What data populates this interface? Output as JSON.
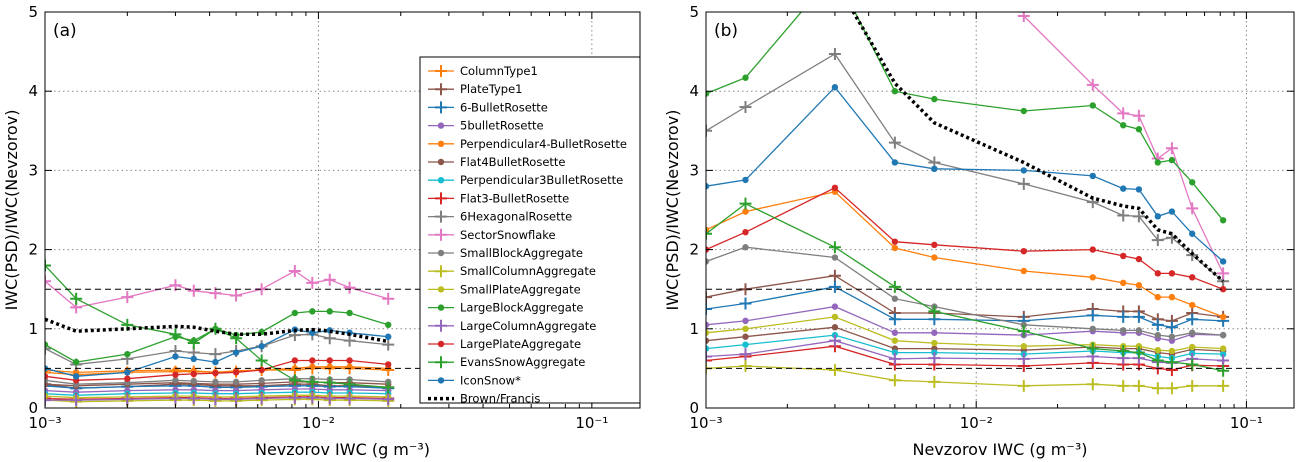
{
  "chart_data": [
    {
      "type": "line",
      "panel_label": "(a)",
      "xlabel": "Nevzorov IWC (g m⁻³)",
      "ylabel": "IWC(PSD)/IWC(Nevzorov)",
      "xscale": "log",
      "xlim": [
        0.001,
        0.15
      ],
      "ylim": [
        0,
        5
      ],
      "x_ticks": [
        {
          "value": 0.001,
          "label": "10⁻³"
        },
        {
          "value": 0.01,
          "label": "10⁻²"
        },
        {
          "value": 0.1,
          "label": "10⁻¹"
        }
      ],
      "y_ticks": [
        {
          "value": 0,
          "label": "0"
        },
        {
          "value": 1,
          "label": "1"
        },
        {
          "value": 2,
          "label": "2"
        },
        {
          "value": 3,
          "label": "3"
        },
        {
          "value": 4,
          "label": "4"
        },
        {
          "value": 5,
          "label": "5"
        }
      ],
      "grid": true,
      "legend_position": "right",
      "reference_lines": [
        0.5,
        1.5
      ],
      "x": [
        0.001,
        0.0013,
        0.002,
        0.003,
        0.0035,
        0.0042,
        0.005,
        0.0062,
        0.0082,
        0.0095,
        0.011,
        0.013,
        0.018
      ],
      "series": [
        {
          "name": "ColumnType1",
          "color": "#ff7f0e",
          "marker": "plus",
          "values": [
            0.45,
            0.42,
            0.45,
            0.46,
            0.46,
            0.45,
            0.46,
            0.48,
            0.48,
            0.5,
            0.5,
            0.5,
            0.48
          ]
        },
        {
          "name": "PlateType1",
          "color": "#8c564b",
          "marker": "plus",
          "values": [
            0.3,
            0.25,
            0.27,
            0.3,
            0.3,
            0.28,
            0.28,
            0.28,
            0.3,
            0.3,
            0.28,
            0.28,
            0.26
          ]
        },
        {
          "name": "6-BulletRosette",
          "color": "#1f77b4",
          "marker": "plus",
          "values": [
            0.28,
            0.25,
            0.27,
            0.28,
            0.28,
            0.26,
            0.26,
            0.27,
            0.28,
            0.28,
            0.27,
            0.27,
            0.25
          ]
        },
        {
          "name": "5bulletRosette",
          "color": "#9467bd",
          "marker": "dot",
          "values": [
            0.22,
            0.2,
            0.22,
            0.23,
            0.23,
            0.22,
            0.22,
            0.23,
            0.24,
            0.24,
            0.23,
            0.23,
            0.22
          ]
        },
        {
          "name": "Perpendicular4-BulletRosette",
          "color": "#ff7f0e",
          "marker": "dot",
          "values": [
            0.48,
            0.45,
            0.47,
            0.48,
            0.47,
            0.45,
            0.47,
            0.48,
            0.5,
            0.52,
            0.52,
            0.52,
            0.5
          ]
        },
        {
          "name": "Flat4BulletRosette",
          "color": "#8c564b",
          "marker": "dot",
          "values": [
            0.3,
            0.28,
            0.3,
            0.32,
            0.31,
            0.3,
            0.3,
            0.31,
            0.33,
            0.33,
            0.32,
            0.32,
            0.3
          ]
        },
        {
          "name": "Perpendicular3BulletRosette",
          "color": "#17becf",
          "marker": "dot",
          "values": [
            0.18,
            0.16,
            0.18,
            0.19,
            0.19,
            0.18,
            0.18,
            0.19,
            0.2,
            0.2,
            0.19,
            0.19,
            0.18
          ]
        },
        {
          "name": "Flat3-BulletRosette",
          "color": "#d62728",
          "marker": "plus",
          "values": [
            0.12,
            0.11,
            0.12,
            0.13,
            0.13,
            0.12,
            0.12,
            0.13,
            0.14,
            0.14,
            0.13,
            0.13,
            0.12
          ]
        },
        {
          "name": "6HexagonalRosette",
          "color": "#7f7f7f",
          "marker": "plus",
          "values": [
            0.75,
            0.55,
            0.62,
            0.72,
            0.7,
            0.68,
            0.72,
            0.78,
            0.92,
            0.93,
            0.88,
            0.85,
            0.8
          ]
        },
        {
          "name": "SectorSnowflake",
          "color": "#e377c2",
          "marker": "plus",
          "values": [
            1.6,
            1.27,
            1.4,
            1.55,
            1.48,
            1.45,
            1.42,
            1.5,
            1.73,
            1.58,
            1.62,
            1.52,
            1.38
          ]
        },
        {
          "name": "SmallBlockAggregate",
          "color": "#7f7f7f",
          "marker": "dot",
          "values": [
            0.35,
            0.3,
            0.32,
            0.35,
            0.34,
            0.33,
            0.33,
            0.35,
            0.37,
            0.37,
            0.36,
            0.36,
            0.33
          ]
        },
        {
          "name": "SmallColumnAggregate",
          "color": "#bcbd22",
          "marker": "plus",
          "values": [
            0.1,
            0.08,
            0.09,
            0.1,
            0.1,
            0.09,
            0.09,
            0.1,
            0.11,
            0.11,
            0.1,
            0.1,
            0.09
          ]
        },
        {
          "name": "SmallPlateAggregate",
          "color": "#bcbd22",
          "marker": "dot",
          "values": [
            0.15,
            0.13,
            0.14,
            0.15,
            0.15,
            0.14,
            0.14,
            0.15,
            0.16,
            0.16,
            0.15,
            0.15,
            0.14
          ]
        },
        {
          "name": "LargeBlockAggregate",
          "color": "#2ca02c",
          "marker": "dot",
          "values": [
            0.8,
            0.58,
            0.68,
            0.9,
            0.85,
            1.0,
            0.92,
            0.96,
            1.2,
            1.22,
            1.22,
            1.2,
            1.05
          ]
        },
        {
          "name": "LargeColumnAggregate",
          "color": "#9467bd",
          "marker": "plus",
          "values": [
            0.1,
            0.1,
            0.11,
            0.12,
            0.12,
            0.11,
            0.11,
            0.12,
            0.13,
            0.13,
            0.12,
            0.12,
            0.11
          ]
        },
        {
          "name": "LargePlateAggregate",
          "color": "#d62728",
          "marker": "dot",
          "values": [
            0.4,
            0.35,
            0.37,
            0.42,
            0.43,
            0.44,
            0.45,
            0.48,
            0.6,
            0.6,
            0.6,
            0.6,
            0.55
          ]
        },
        {
          "name": "EvansSnowAggregate",
          "color": "#2ca02c",
          "marker": "plus",
          "values": [
            1.8,
            1.38,
            1.05,
            0.93,
            0.82,
            1.0,
            0.88,
            0.6,
            0.35,
            0.33,
            0.32,
            0.3,
            0.26
          ]
        },
        {
          "name": "IconSnow*",
          "color": "#1f77b4",
          "marker": "dot",
          "values": [
            0.5,
            0.4,
            0.45,
            0.65,
            0.62,
            0.58,
            0.7,
            0.78,
            0.99,
            0.95,
            0.98,
            0.95,
            0.9
          ]
        },
        {
          "name": "Brown/Francis",
          "color": "#000000",
          "marker": "none",
          "dashed": true,
          "values": [
            1.12,
            0.97,
            1.0,
            1.03,
            1.02,
            0.97,
            0.93,
            0.93,
            0.98,
            0.99,
            0.97,
            0.93,
            0.84
          ]
        }
      ]
    },
    {
      "type": "line",
      "panel_label": "(b)",
      "xlabel": "Nevzorov IWC (g m⁻³)",
      "ylabel": "IWC(PSD)/IWC(Nevzorov)",
      "xscale": "log",
      "xlim": [
        0.001,
        0.15
      ],
      "ylim": [
        0,
        5
      ],
      "x_ticks": [
        {
          "value": 0.001,
          "label": "10⁻³"
        },
        {
          "value": 0.01,
          "label": "10⁻²"
        },
        {
          "value": 0.1,
          "label": "10⁻¹"
        }
      ],
      "y_ticks": [
        {
          "value": 0,
          "label": "0"
        },
        {
          "value": 1,
          "label": "1"
        },
        {
          "value": 2,
          "label": "2"
        },
        {
          "value": 3,
          "label": "3"
        },
        {
          "value": 4,
          "label": "4"
        },
        {
          "value": 5,
          "label": "5"
        }
      ],
      "grid": true,
      "reference_lines": [
        0.5,
        1.5
      ],
      "x": [
        0.001,
        0.0014,
        0.003,
        0.005,
        0.007,
        0.015,
        0.027,
        0.035,
        0.04,
        0.047,
        0.053,
        0.063,
        0.082
      ],
      "series": [
        {
          "name": "ColumnType1",
          "color": "#ff7f0e",
          "marker": "plus",
          "values": [
            null,
            null,
            null,
            null,
            null,
            null,
            null,
            null,
            null,
            null,
            null,
            null,
            null
          ]
        },
        {
          "name": "PlateType1",
          "color": "#8c564b",
          "marker": "plus",
          "values": [
            1.4,
            1.5,
            1.67,
            1.2,
            1.2,
            1.15,
            1.25,
            1.22,
            1.22,
            1.12,
            1.1,
            1.2,
            1.15
          ]
        },
        {
          "name": "6-BulletRosette",
          "color": "#1f77b4",
          "marker": "plus",
          "values": [
            1.25,
            1.32,
            1.53,
            1.12,
            1.12,
            1.1,
            1.17,
            1.15,
            1.15,
            1.05,
            1.02,
            1.12,
            1.1
          ]
        },
        {
          "name": "5bulletRosette",
          "color": "#9467bd",
          "marker": "dot",
          "values": [
            1.05,
            1.1,
            1.28,
            0.95,
            0.95,
            0.92,
            0.97,
            0.95,
            0.95,
            0.88,
            0.85,
            0.93,
            0.92
          ]
        },
        {
          "name": "Perpendicular4-BulletRosette",
          "color": "#ff7f0e",
          "marker": "dot",
          "values": [
            2.25,
            2.48,
            2.73,
            2.02,
            1.9,
            1.73,
            1.65,
            1.58,
            1.55,
            1.4,
            1.4,
            1.3,
            1.15
          ]
        },
        {
          "name": "Flat4BulletRosette",
          "color": "#8c564b",
          "marker": "dot",
          "values": [
            0.85,
            0.9,
            1.02,
            0.75,
            0.75,
            0.73,
            0.77,
            0.75,
            0.75,
            0.7,
            0.68,
            0.74,
            0.72
          ]
        },
        {
          "name": "Perpendicular3BulletRosette",
          "color": "#17becf",
          "marker": "dot",
          "values": [
            0.75,
            0.8,
            0.92,
            0.7,
            0.7,
            0.68,
            0.72,
            0.7,
            0.7,
            0.65,
            0.63,
            0.69,
            0.68
          ]
        },
        {
          "name": "Flat3-BulletRosette",
          "color": "#d62728",
          "marker": "plus",
          "values": [
            0.6,
            0.65,
            0.78,
            0.55,
            0.55,
            0.53,
            0.57,
            0.55,
            0.55,
            0.5,
            0.48,
            0.54,
            0.53
          ]
        },
        {
          "name": "6HexagonalRosette",
          "color": "#7f7f7f",
          "marker": "plus",
          "values": [
            3.5,
            3.8,
            4.47,
            3.35,
            3.1,
            2.83,
            2.6,
            2.43,
            2.42,
            2.12,
            2.15,
            1.93,
            1.6
          ]
        },
        {
          "name": "SectorSnowflake",
          "color": "#e377c2",
          "marker": "plus",
          "values": [
            null,
            null,
            null,
            null,
            null,
            4.95,
            4.08,
            3.72,
            3.69,
            3.15,
            3.28,
            2.52,
            1.7
          ]
        },
        {
          "name": "SmallBlockAggregate",
          "color": "#7f7f7f",
          "marker": "dot",
          "values": [
            1.85,
            2.03,
            1.9,
            1.38,
            1.28,
            1.05,
            1.0,
            0.98,
            0.98,
            0.92,
            0.9,
            0.95,
            0.92
          ]
        },
        {
          "name": "SmallColumnAggregate",
          "color": "#bcbd22",
          "marker": "plus",
          "values": [
            0.5,
            0.53,
            0.48,
            0.35,
            0.33,
            0.28,
            0.3,
            0.28,
            0.28,
            0.25,
            0.25,
            0.28,
            0.28
          ]
        },
        {
          "name": "SmallPlateAggregate",
          "color": "#bcbd22",
          "marker": "dot",
          "values": [
            0.95,
            1.0,
            1.15,
            0.85,
            0.82,
            0.78,
            0.8,
            0.78,
            0.78,
            0.73,
            0.72,
            0.77,
            0.75
          ]
        },
        {
          "name": "LargeBlockAggregate",
          "color": "#2ca02c",
          "marker": "dot",
          "values": [
            3.97,
            4.17,
            5.5,
            4.0,
            3.9,
            3.75,
            3.82,
            3.57,
            3.52,
            3.1,
            3.13,
            2.85,
            2.37
          ]
        },
        {
          "name": "LargeColumnAggregate",
          "color": "#9467bd",
          "marker": "plus",
          "values": [
            0.65,
            0.68,
            0.85,
            0.62,
            0.63,
            0.62,
            0.65,
            0.63,
            0.63,
            0.58,
            0.57,
            0.62,
            0.6
          ]
        },
        {
          "name": "LargePlateAggregate",
          "color": "#d62728",
          "marker": "dot",
          "values": [
            2.0,
            2.22,
            2.78,
            2.1,
            2.06,
            1.98,
            2.0,
            1.92,
            1.88,
            1.7,
            1.7,
            1.65,
            1.5
          ]
        },
        {
          "name": "EvansSnowAggregate",
          "color": "#2ca02c",
          "marker": "plus",
          "values": [
            2.2,
            2.58,
            2.03,
            1.53,
            1.22,
            0.97,
            0.75,
            0.72,
            0.7,
            0.6,
            0.58,
            0.55,
            0.47
          ]
        },
        {
          "name": "IconSnow*",
          "color": "#1f77b4",
          "marker": "dot",
          "values": [
            2.8,
            2.88,
            4.05,
            3.1,
            3.02,
            3.0,
            2.93,
            2.77,
            2.76,
            2.42,
            2.48,
            2.2,
            1.85
          ]
        },
        {
          "name": "Brown/Francis",
          "color": "#000000",
          "marker": "none",
          "dashed": true,
          "values": [
            null,
            null,
            5.4,
            4.1,
            3.6,
            3.1,
            2.65,
            2.55,
            2.52,
            2.25,
            2.2,
            1.95,
            1.6
          ]
        }
      ]
    }
  ]
}
